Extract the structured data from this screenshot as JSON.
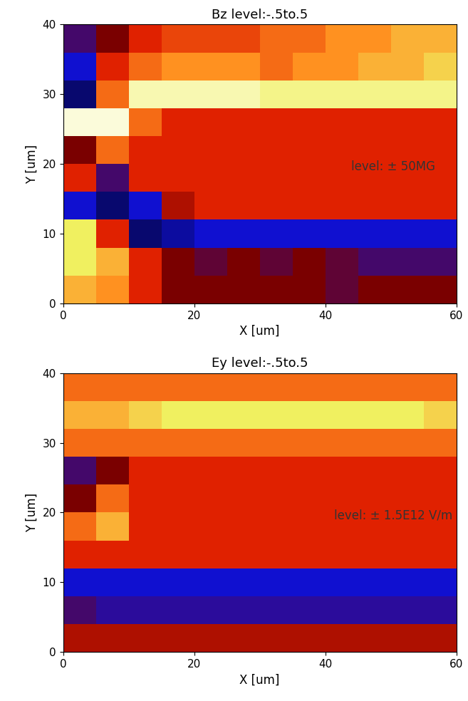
{
  "chart_data": [
    {
      "type": "heatmap",
      "title": "Bz level:-.5to.5",
      "x_label": "X [um]",
      "y_label": "Y [um]",
      "annotation": "level: ± 50MG",
      "xlim": [
        0,
        60
      ],
      "ylim": [
        0,
        40
      ],
      "xticks": [
        0,
        20,
        40,
        60
      ],
      "yticks": [
        0,
        10,
        20,
        30,
        40
      ],
      "grid": false,
      "clim": [
        -0.5,
        0.5
      ],
      "x_edges": [
        0,
        5,
        10,
        15,
        20,
        25,
        30,
        35,
        40,
        45,
        50,
        55,
        60
      ],
      "y_edges": [
        0,
        4,
        8,
        12,
        16,
        20,
        24,
        28,
        32,
        36,
        40
      ],
      "cells": [
        [
          0.2,
          0.15,
          0.0,
          -0.1,
          -0.1,
          -0.1,
          -0.1,
          -0.1,
          -0.15,
          -0.1,
          -0.1,
          -0.1
        ],
        [
          0.3,
          0.2,
          0.0,
          -0.1,
          -0.15,
          -0.1,
          -0.15,
          -0.1,
          -0.15,
          -0.2,
          -0.2,
          -0.2
        ],
        [
          0.3,
          0.0,
          -0.4,
          -0.35,
          -0.3,
          -0.3,
          -0.3,
          -0.3,
          -0.3,
          -0.3,
          -0.3,
          -0.3
        ],
        [
          -0.3,
          -0.4,
          -0.3,
          -0.05,
          0.0,
          0.0,
          0.0,
          0.0,
          0.0,
          0.0,
          0.0,
          0.0
        ],
        [
          0.0,
          -0.2,
          0.0,
          0.0,
          0.0,
          0.0,
          0.0,
          0.0,
          0.0,
          0.0,
          0.0,
          0.0
        ],
        [
          -0.1,
          0.1,
          0.0,
          0.0,
          0.0,
          0.0,
          0.0,
          0.0,
          0.0,
          0.0,
          0.0,
          0.0
        ],
        [
          0.45,
          0.45,
          0.1,
          0.0,
          0.0,
          0.0,
          0.0,
          0.0,
          0.0,
          0.0,
          0.0,
          0.0
        ],
        [
          -0.4,
          0.1,
          0.4,
          0.4,
          0.4,
          0.4,
          0.35,
          0.35,
          0.35,
          0.35,
          0.35,
          0.35
        ],
        [
          -0.3,
          0.0,
          0.1,
          0.15,
          0.15,
          0.15,
          0.1,
          0.15,
          0.15,
          0.2,
          0.2,
          0.25
        ],
        [
          -0.2,
          -0.1,
          0.0,
          0.05,
          0.05,
          0.05,
          0.1,
          0.1,
          0.15,
          0.15,
          0.2,
          0.2
        ]
      ]
    },
    {
      "type": "heatmap",
      "title": "Ey level:-.5to.5",
      "x_label": "X [um]",
      "y_label": "Y [um]",
      "annotation": "level: ± 1.5E12 V/m",
      "xlim": [
        0,
        60
      ],
      "ylim": [
        0,
        40
      ],
      "xticks": [
        0,
        20,
        40,
        60
      ],
      "yticks": [
        0,
        10,
        20,
        30,
        40
      ],
      "grid": false,
      "clim": [
        -0.5,
        0.5
      ],
      "x_edges": [
        0,
        5,
        10,
        15,
        20,
        25,
        30,
        35,
        40,
        45,
        50,
        55,
        60
      ],
      "y_edges": [
        0,
        4,
        8,
        12,
        16,
        20,
        24,
        28,
        32,
        36,
        40
      ],
      "cells": [
        [
          -0.05,
          -0.05,
          -0.05,
          -0.05,
          -0.05,
          -0.05,
          -0.05,
          -0.05,
          -0.05,
          -0.05,
          -0.05,
          -0.05
        ],
        [
          -0.2,
          -0.25,
          -0.25,
          -0.25,
          -0.25,
          -0.25,
          -0.25,
          -0.25,
          -0.25,
          -0.25,
          -0.25,
          -0.25
        ],
        [
          -0.3,
          -0.3,
          -0.3,
          -0.3,
          -0.3,
          -0.3,
          -0.3,
          -0.3,
          -0.3,
          -0.3,
          -0.3,
          -0.3
        ],
        [
          0.0,
          0.0,
          0.0,
          0.0,
          0.0,
          0.0,
          0.0,
          0.0,
          0.0,
          0.0,
          0.0,
          0.0
        ],
        [
          0.1,
          0.2,
          0.0,
          0.0,
          0.0,
          0.0,
          0.0,
          0.0,
          0.0,
          0.0,
          0.0,
          0.0
        ],
        [
          -0.1,
          0.1,
          0.0,
          0.0,
          0.0,
          0.0,
          0.0,
          0.0,
          0.0,
          0.0,
          0.0,
          0.0
        ],
        [
          -0.2,
          -0.1,
          0.0,
          0.0,
          0.0,
          0.0,
          0.0,
          0.0,
          0.0,
          0.0,
          0.0,
          0.0
        ],
        [
          0.1,
          0.1,
          0.1,
          0.1,
          0.1,
          0.1,
          0.1,
          0.1,
          0.1,
          0.1,
          0.1,
          0.1
        ],
        [
          0.2,
          0.2,
          0.25,
          0.3,
          0.3,
          0.3,
          0.3,
          0.3,
          0.3,
          0.3,
          0.3,
          0.25
        ],
        [
          0.1,
          0.1,
          0.1,
          0.1,
          0.1,
          0.1,
          0.1,
          0.1,
          0.1,
          0.1,
          0.1,
          0.1
        ]
      ]
    }
  ]
}
